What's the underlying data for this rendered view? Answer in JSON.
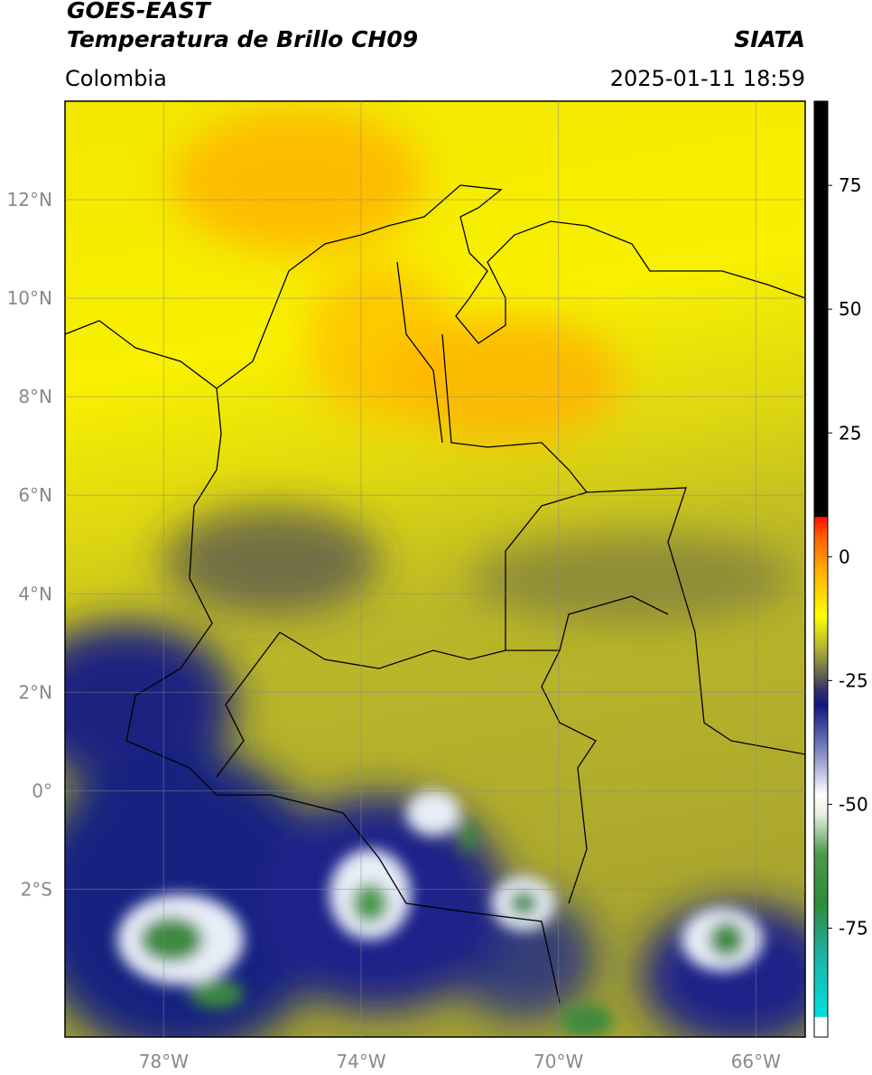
{
  "header": {
    "title": "GOES-EAST",
    "subtitle": "Temperatura de Brillo CH09",
    "region": "Colombia",
    "source": "SIATA",
    "datetime": "2025-01-11 18:59"
  },
  "map": {
    "latlim": [
      -5,
      14
    ],
    "lonlim": [
      -80,
      -65
    ],
    "lat_ticks": [
      {
        "value": 12,
        "label": "12°N"
      },
      {
        "value": 10,
        "label": "10°N"
      },
      {
        "value": 8,
        "label": "8°N"
      },
      {
        "value": 6,
        "label": "6°N"
      },
      {
        "value": 4,
        "label": "4°N"
      },
      {
        "value": 2,
        "label": "2°N"
      },
      {
        "value": 0,
        "label": "0°"
      },
      {
        "value": -2,
        "label": "2°S"
      }
    ],
    "lon_ticks": [
      {
        "value": -78,
        "label": "78°W"
      },
      {
        "value": -74,
        "label": "74°W"
      },
      {
        "value": -70,
        "label": "70°W"
      },
      {
        "value": -66,
        "label": "66°W"
      }
    ]
  },
  "colorbar": {
    "clim": [
      -97,
      92
    ],
    "ticks": [
      75,
      50,
      25,
      0,
      -25,
      -50,
      -75
    ],
    "stops": [
      {
        "value": -97,
        "color": "#ffffff"
      },
      {
        "value": -93,
        "color": "#ffffff"
      },
      {
        "value": -92.9,
        "color": "#00e0e0"
      },
      {
        "value": -80,
        "color": "#20b0a0"
      },
      {
        "value": -70,
        "color": "#2e8b3a"
      },
      {
        "value": -60,
        "color": "#4a9a4a"
      },
      {
        "value": -52,
        "color": "#e8f0e0"
      },
      {
        "value": -48,
        "color": "#ffffff"
      },
      {
        "value": -40,
        "color": "#8890c8"
      },
      {
        "value": -30,
        "color": "#101880"
      },
      {
        "value": -27,
        "color": "#30306a"
      },
      {
        "value": -23,
        "color": "#707050"
      },
      {
        "value": -18,
        "color": "#b8b830"
      },
      {
        "value": -12,
        "color": "#ffff00"
      },
      {
        "value": -3,
        "color": "#ffb000"
      },
      {
        "value": 4,
        "color": "#ff6000"
      },
      {
        "value": 8,
        "color": "#ff1000"
      },
      {
        "value": 8.1,
        "color": "#000000"
      },
      {
        "value": 92,
        "color": "#000000"
      }
    ]
  }
}
